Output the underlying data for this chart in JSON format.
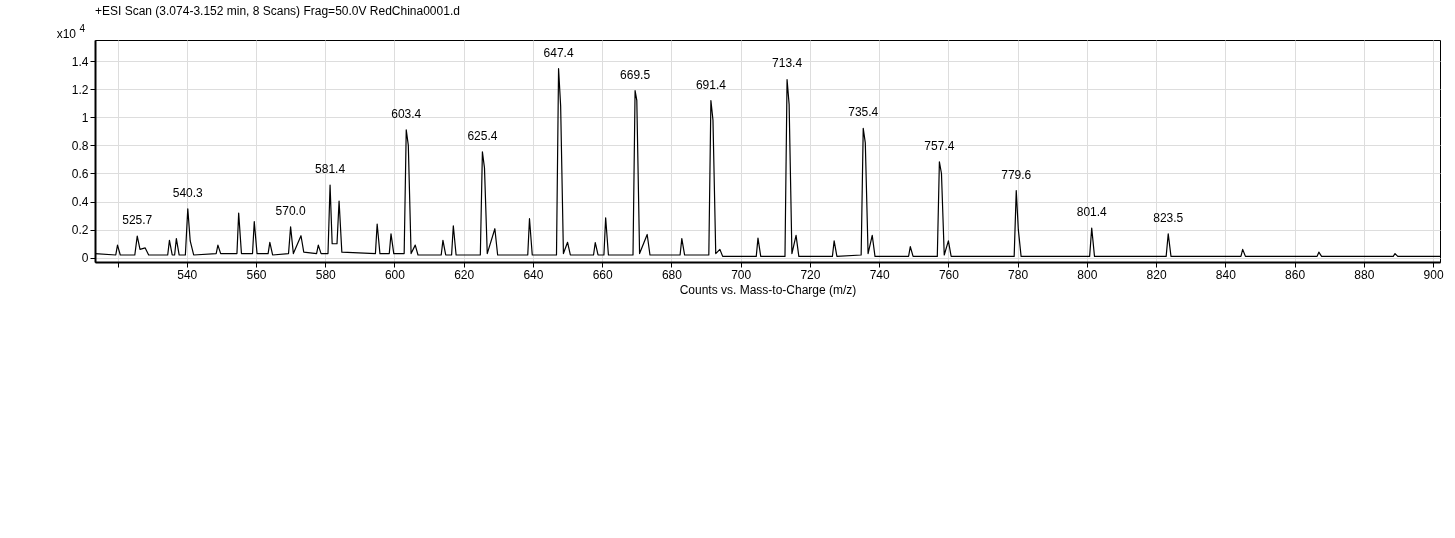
{
  "chart_data": {
    "type": "line",
    "title": "+ESI Scan (3.074-3.152 min, 8 Scans) Frag=50.0V RedChina0001.d",
    "xlabel": "Counts vs. Mass-to-Charge (m/z)",
    "ylabel": "x10$^{4}$",
    "x": [
      513.5,
      519.5,
      520,
      520.8,
      525,
      525.7,
      526.5,
      528,
      529,
      534.5,
      535,
      535.8,
      536.5,
      537,
      537.8,
      539.6,
      540.3,
      541,
      542,
      548.5,
      549,
      549.8,
      554.5,
      555,
      555.8,
      559,
      559.5,
      560.3,
      563.5,
      564,
      564.8,
      569.4,
      570.0,
      570.8,
      573,
      573.8,
      577.5,
      578,
      578.8,
      580.8,
      581.4,
      582,
      583.4,
      584,
      584.8,
      594.5,
      595,
      595.8,
      598.5,
      599,
      599.8,
      602.8,
      603.4,
      604,
      604.8,
      606,
      606.8,
      613.5,
      614,
      614.8,
      616.5,
      617,
      617.8,
      624.8,
      625.4,
      626,
      626.8,
      629,
      629.8,
      638.5,
      639,
      639.8,
      646.8,
      647.4,
      648,
      648.8,
      650,
      650.8,
      657.5,
      658,
      658.8,
      660.5,
      661,
      661.8,
      668.9,
      669.5,
      670,
      670.8,
      673,
      673.8,
      682.5,
      683,
      683.8,
      690.8,
      691.4,
      692,
      692.8,
      694,
      694.8,
      704.5,
      705,
      705.8,
      712.8,
      713.4,
      714,
      714.8,
      716,
      716.8,
      726.5,
      727,
      727.8,
      734.8,
      735.4,
      736,
      736.8,
      738,
      738.8,
      748.5,
      749,
      749.8,
      756.8,
      757.4,
      758,
      758.8,
      760,
      760.8,
      779,
      779.6,
      780.2,
      781,
      800.8,
      801.4,
      802.2,
      822.9,
      823.5,
      824.3,
      844.5,
      845,
      845.8,
      866.5,
      867,
      867.8,
      888.5,
      889,
      889.8,
      902
    ],
    "series": [
      {
        "color": "#000000",
        "values": [
          0.03,
          0.02,
          0.09,
          0.02,
          0.02,
          0.154,
          0.06,
          0.07,
          0.02,
          0.02,
          0.124,
          0.02,
          0.02,
          0.136,
          0.02,
          0.02,
          0.348,
          0.12,
          0.02,
          0.03,
          0.09,
          0.03,
          0.03,
          0.318,
          0.03,
          0.03,
          0.257,
          0.03,
          0.03,
          0.11,
          0.02,
          0.03,
          0.22,
          0.03,
          0.157,
          0.04,
          0.03,
          0.09,
          0.03,
          0.03,
          0.517,
          0.1,
          0.1,
          0.404,
          0.04,
          0.03,
          0.24,
          0.03,
          0.03,
          0.17,
          0.03,
          0.03,
          0.911,
          0.8,
          0.03,
          0.09,
          0.02,
          0.02,
          0.124,
          0.02,
          0.02,
          0.228,
          0.02,
          0.02,
          0.754,
          0.64,
          0.03,
          0.207,
          0.02,
          0.02,
          0.278,
          0.02,
          0.02,
          1.346,
          1.08,
          0.03,
          0.11,
          0.02,
          0.02,
          0.108,
          0.02,
          0.02,
          0.285,
          0.02,
          0.02,
          1.189,
          1.12,
          0.03,
          0.166,
          0.02,
          0.02,
          0.136,
          0.02,
          0.02,
          1.119,
          0.98,
          0.03,
          0.06,
          0.01,
          0.01,
          0.14,
          0.01,
          0.01,
          1.269,
          1.09,
          0.03,
          0.16,
          0.01,
          0.01,
          0.12,
          0.01,
          0.02,
          0.921,
          0.818,
          0.03,
          0.16,
          0.01,
          0.01,
          0.08,
          0.01,
          0.01,
          0.683,
          0.6,
          0.02,
          0.12,
          0.01,
          0.01,
          0.478,
          0.2,
          0.01,
          0.01,
          0.212,
          0.01,
          0.01,
          0.17,
          0.01,
          0.01,
          0.06,
          0.01,
          0.01,
          0.04,
          0.01,
          0.01,
          0.03,
          0.01,
          0.01
        ]
      }
    ],
    "annotations": [
      {
        "text": "525.7",
        "x": 525.7,
        "y": 0.154
      },
      {
        "text": "540.3",
        "x": 540.3,
        "y": 0.348
      },
      {
        "text": "570.0",
        "x": 570.0,
        "y": 0.22
      },
      {
        "text": "581.4",
        "x": 581.4,
        "y": 0.517
      },
      {
        "text": "603.4",
        "x": 603.4,
        "y": 0.911
      },
      {
        "text": "625.4",
        "x": 625.4,
        "y": 0.754
      },
      {
        "text": "647.4",
        "x": 647.4,
        "y": 1.346
      },
      {
        "text": "669.5",
        "x": 669.5,
        "y": 1.189
      },
      {
        "text": "691.4",
        "x": 691.4,
        "y": 1.119
      },
      {
        "text": "713.4",
        "x": 713.4,
        "y": 1.269
      },
      {
        "text": "735.4",
        "x": 735.4,
        "y": 0.921
      },
      {
        "text": "757.4",
        "x": 757.4,
        "y": 0.683
      },
      {
        "text": "779.6",
        "x": 779.6,
        "y": 0.478
      },
      {
        "text": "801.4",
        "x": 801.4,
        "y": 0.212
      },
      {
        "text": "823.5",
        "x": 823.5,
        "y": 0.17
      }
    ],
    "xlim": [
      513.5,
      902
    ],
    "xticks": [
      {
        "value": 520,
        "label": null
      },
      540,
      560,
      580,
      600,
      620,
      640,
      660,
      680,
      700,
      720,
      740,
      760,
      780,
      800,
      820,
      840,
      860,
      880,
      900
    ],
    "ylim": [
      -0.03,
      1.55
    ],
    "yticks": [
      0,
      0.2,
      0.4,
      0.6,
      0.8,
      1,
      1.2,
      1.4
    ],
    "grid": true,
    "marker": "none",
    "line_style": "solid"
  }
}
